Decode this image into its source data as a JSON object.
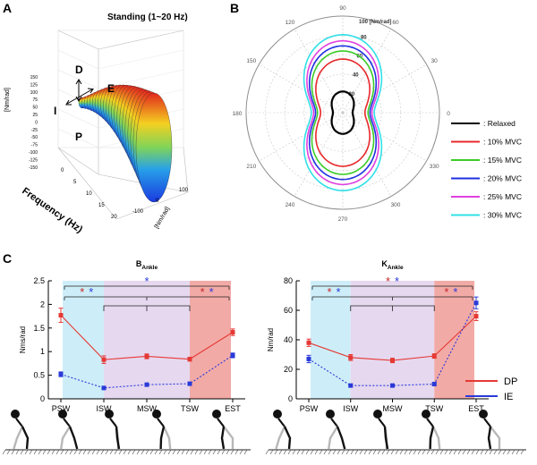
{
  "panels": {
    "A": {
      "letter": "A",
      "title": "Standing (1~20 Hz)",
      "directions": {
        "D": "D",
        "E": "E",
        "I": "I",
        "P": "P"
      },
      "z_ticks": [
        "150",
        "125",
        "100",
        "75",
        "50",
        "25",
        "0",
        "-25",
        "-50",
        "-75",
        "-100",
        "-125",
        "-150"
      ],
      "z_label": "[Nm/rad]",
      "freq_ticks": [
        "0",
        "5",
        "10",
        "15",
        "20"
      ],
      "freq_label": "Frequency (Hz)",
      "xy_ticks": [
        "-100",
        "0",
        "100"
      ],
      "xy_label": "[Nm/rad]"
    },
    "B": {
      "letter": "B",
      "angle_labels": [
        "90",
        "60",
        "30",
        "0",
        "330",
        "300",
        "270",
        "240",
        "210",
        "180",
        "150",
        "120"
      ],
      "radial_labels": [
        "20",
        "40",
        "60",
        "80"
      ],
      "radial_max_label": "100 [Nm/rad]",
      "legend": [
        {
          "label": ": Relaxed",
          "color": "#000000",
          "radius_mm": 18
        },
        {
          "label": ": 10% MVC",
          "color": "#e8282a",
          "radius_mm": 50
        },
        {
          "label": ": 15% MVC",
          "color": "#3ccc28",
          "radius_mm": 58
        },
        {
          "label": ": 20% MVC",
          "color": "#2030e0",
          "radius_mm": 63
        },
        {
          "label": ": 25% MVC",
          "color": "#e040e0",
          "radius_mm": 68
        },
        {
          "label": ": 30% MVC",
          "color": "#30e0e8",
          "radius_mm": 74
        }
      ]
    },
    "C": {
      "letter": "C",
      "legend": [
        {
          "label": "DP",
          "color": "#e53935"
        },
        {
          "label": "IE",
          "color": "#2a3ad8"
        }
      ],
      "phase_colors": {
        "pre": "#cdeef8",
        "mid": "#e6d8ef",
        "late": "#f2aaa6"
      },
      "star_colors": {
        "red": "#c62828",
        "blue": "#2a3ad8"
      }
    }
  },
  "chart_data": [
    {
      "type": "line",
      "title_main": "B",
      "title_sub": "Ankle",
      "ylabel": "Nms/rad",
      "xlabel": "",
      "categories": [
        "PSW",
        "ISW",
        "MSW",
        "TSW",
        "EST"
      ],
      "ylim": [
        0,
        2.5
      ],
      "yticks": [
        "0",
        "0.5",
        "1",
        "1.5",
        "2",
        "2.5"
      ],
      "series": [
        {
          "name": "DP",
          "values": [
            1.77,
            0.83,
            0.9,
            0.84,
            1.41
          ],
          "errors": [
            0.15,
            0.08,
            0.05,
            0.04,
            0.07
          ]
        },
        {
          "name": "IE",
          "values": [
            0.52,
            0.23,
            0.3,
            0.32,
            0.92
          ],
          "errors": [
            0.05,
            0.03,
            0.03,
            0.03,
            0.05
          ]
        }
      ],
      "star_rows": [
        {
          "stars": [
            "blue"
          ]
        },
        {
          "stars": [
            "red",
            "blue"
          ]
        },
        {
          "stars": [
            "red",
            "blue"
          ]
        }
      ]
    },
    {
      "type": "line",
      "title_main": "K",
      "title_sub": "Ankle",
      "ylabel": "Nm/rad",
      "xlabel": "",
      "categories": [
        "PSW",
        "ISW",
        "MSW",
        "TSW",
        "EST"
      ],
      "ylim": [
        0,
        80
      ],
      "yticks": [
        "0",
        "20",
        "40",
        "60",
        "80"
      ],
      "series": [
        {
          "name": "DP",
          "values": [
            38,
            28,
            26,
            29,
            56
          ],
          "errors": [
            2.5,
            2,
            1.5,
            1.5,
            3
          ]
        },
        {
          "name": "IE",
          "values": [
            27,
            9,
            9,
            10,
            65
          ],
          "errors": [
            2.5,
            1,
            1,
            1,
            4
          ]
        }
      ],
      "star_rows": [
        {
          "stars": [
            "red",
            "blue"
          ]
        },
        {
          "stars": [
            "red",
            "blue"
          ]
        },
        {
          "stars": [
            "red",
            "blue"
          ]
        }
      ]
    }
  ]
}
